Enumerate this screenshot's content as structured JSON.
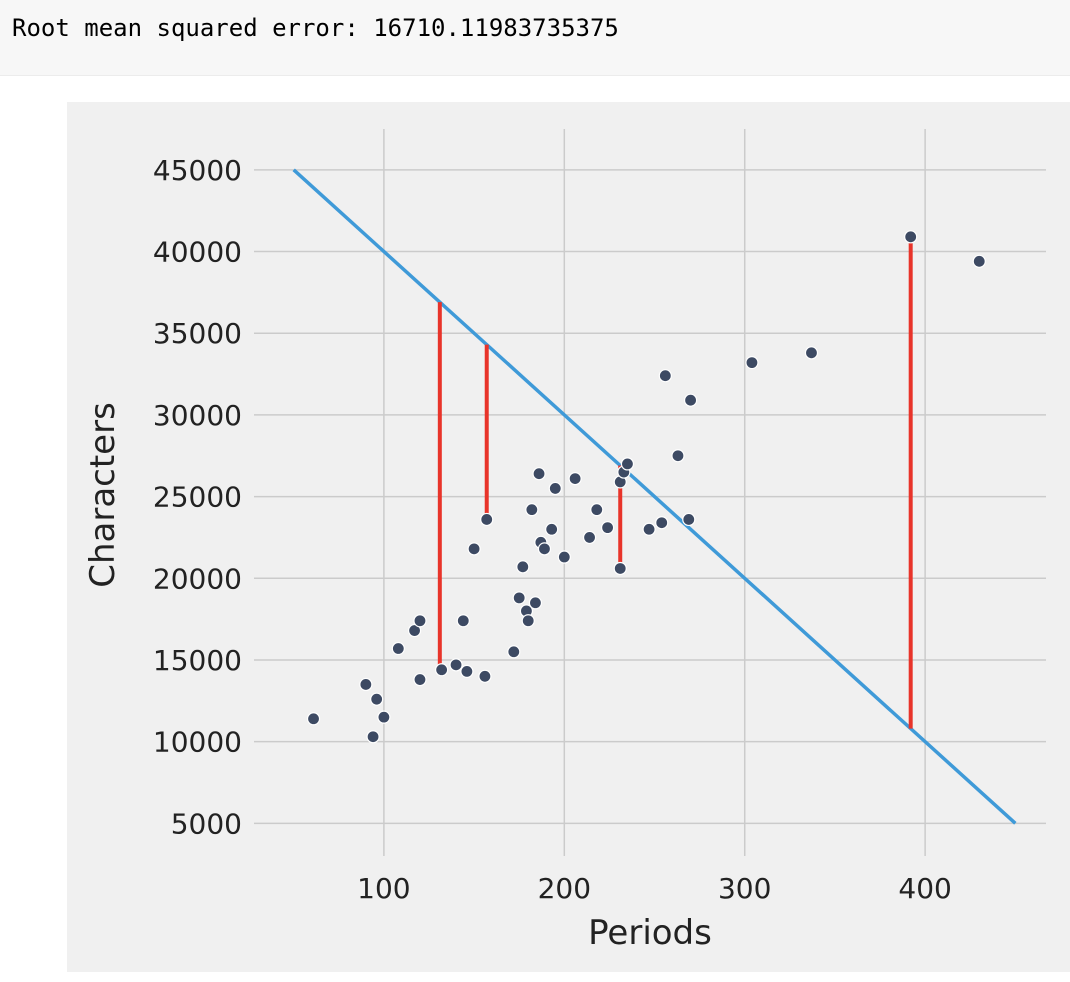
{
  "output": {
    "text": "Root mean squared error: 16710.11983735375"
  },
  "chart_data": {
    "type": "scatter",
    "title": "",
    "xlabel": "Periods",
    "ylabel": "Characters",
    "xlim": [
      28,
      467
    ],
    "ylim": [
      3000,
      47500
    ],
    "xticks": [
      100,
      200,
      300,
      400
    ],
    "yticks": [
      5000,
      10000,
      15000,
      20000,
      25000,
      30000,
      35000,
      40000,
      45000
    ],
    "xtick_labels": [
      "100",
      "200",
      "300",
      "400"
    ],
    "ytick_labels": [
      "5000",
      "10000",
      "15000",
      "20000",
      "25000",
      "30000",
      "35000",
      "40000",
      "45000"
    ],
    "grid": true,
    "colors": {
      "background": "#f0f0f0",
      "grid": "#cbcbcb",
      "points": "#3d4a63",
      "line": "#3f9ad8",
      "errors": "#e8342a"
    },
    "points": [
      {
        "x": 61,
        "y": 11400
      },
      {
        "x": 90,
        "y": 13500
      },
      {
        "x": 94,
        "y": 10300
      },
      {
        "x": 96,
        "y": 12600
      },
      {
        "x": 100,
        "y": 11500
      },
      {
        "x": 108,
        "y": 15700
      },
      {
        "x": 117,
        "y": 16800
      },
      {
        "x": 120,
        "y": 17400
      },
      {
        "x": 120,
        "y": 13800
      },
      {
        "x": 132,
        "y": 14400
      },
      {
        "x": 140,
        "y": 14700
      },
      {
        "x": 144,
        "y": 17400
      },
      {
        "x": 146,
        "y": 14300
      },
      {
        "x": 150,
        "y": 21800
      },
      {
        "x": 156,
        "y": 14000
      },
      {
        "x": 157,
        "y": 23600
      },
      {
        "x": 172,
        "y": 15500
      },
      {
        "x": 175,
        "y": 18800
      },
      {
        "x": 177,
        "y": 20700
      },
      {
        "x": 179,
        "y": 18000
      },
      {
        "x": 180,
        "y": 17400
      },
      {
        "x": 182,
        "y": 24200
      },
      {
        "x": 184,
        "y": 18500
      },
      {
        "x": 186,
        "y": 26400
      },
      {
        "x": 187,
        "y": 22200
      },
      {
        "x": 189,
        "y": 21800
      },
      {
        "x": 193,
        "y": 23000
      },
      {
        "x": 195,
        "y": 25500
      },
      {
        "x": 200,
        "y": 21300
      },
      {
        "x": 206,
        "y": 26100
      },
      {
        "x": 214,
        "y": 22500
      },
      {
        "x": 218,
        "y": 24200
      },
      {
        "x": 224,
        "y": 23100
      },
      {
        "x": 231,
        "y": 20600
      },
      {
        "x": 231,
        "y": 25900
      },
      {
        "x": 233,
        "y": 26500
      },
      {
        "x": 235,
        "y": 27000
      },
      {
        "x": 247,
        "y": 23000
      },
      {
        "x": 254,
        "y": 23400
      },
      {
        "x": 256,
        "y": 32400
      },
      {
        "x": 263,
        "y": 27500
      },
      {
        "x": 269,
        "y": 23600
      },
      {
        "x": 270,
        "y": 30900
      },
      {
        "x": 304,
        "y": 33200
      },
      {
        "x": 337,
        "y": 33800
      },
      {
        "x": 392,
        "y": 40900
      },
      {
        "x": 430,
        "y": 39400
      }
    ],
    "line": {
      "x": [
        50,
        450
      ],
      "y": [
        45000,
        5000
      ]
    },
    "error_segments": [
      {
        "x": 131,
        "y1": 36900,
        "y2": 14400
      },
      {
        "x": 157,
        "y1": 34300,
        "y2": 23600
      },
      {
        "x": 231,
        "y1": 26900,
        "y2": 20600
      },
      {
        "x": 392,
        "y1": 10800,
        "y2": 40900
      }
    ]
  }
}
